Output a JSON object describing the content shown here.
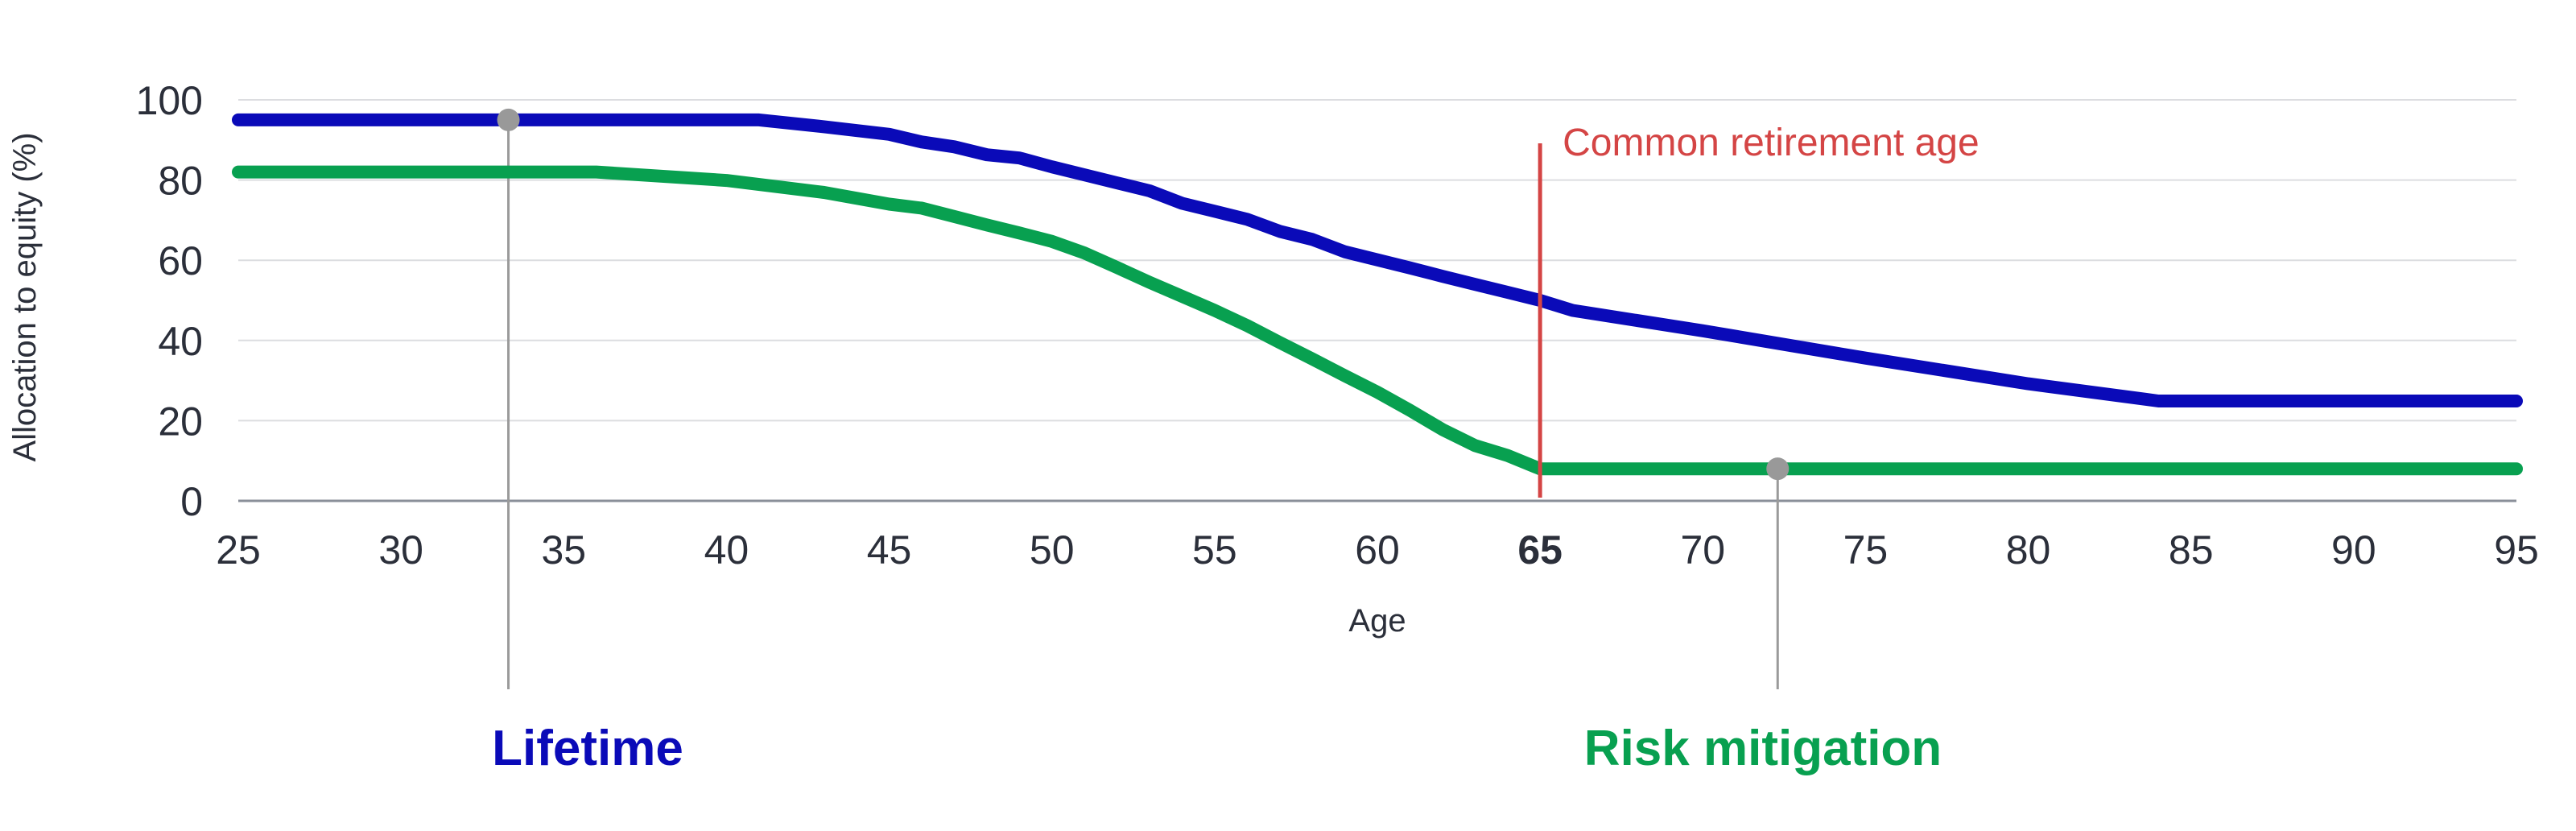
{
  "chart_data": {
    "type": "line",
    "title": "",
    "xlabel": "Age",
    "ylabel": "Allocation to equity (%)",
    "xlim": [
      25,
      95
    ],
    "ylim": [
      0,
      100
    ],
    "xticks": [
      25,
      30,
      35,
      40,
      45,
      50,
      55,
      60,
      65,
      70,
      75,
      80,
      85,
      90,
      95
    ],
    "xtick_labels": [
      "25",
      "30",
      "35",
      "40",
      "45",
      "50",
      "55",
      "60",
      "65",
      "70",
      "75",
      "80",
      "85",
      "90",
      "95"
    ],
    "yticks": [
      0,
      20,
      40,
      60,
      80,
      100
    ],
    "ytick_labels": [
      "0",
      "20",
      "40",
      "60",
      "80",
      "100"
    ],
    "emphasized_xtick": 65,
    "grid": "horizontal",
    "series": [
      {
        "name": "Lifetime",
        "color": "#0a0ab8",
        "points": [
          [
            25,
            95
          ],
          [
            30,
            95
          ],
          [
            35,
            95
          ],
          [
            40,
            95
          ],
          [
            41,
            95
          ],
          [
            43,
            93.3
          ],
          [
            45,
            91.4
          ],
          [
            46,
            89.5
          ],
          [
            47,
            88.3
          ],
          [
            48,
            86.3
          ],
          [
            49,
            85.5
          ],
          [
            50,
            83.3
          ],
          [
            51,
            81.3
          ],
          [
            52,
            79.3
          ],
          [
            53,
            77.3
          ],
          [
            54,
            74.2
          ],
          [
            55,
            72.2
          ],
          [
            56,
            70.2
          ],
          [
            57,
            67.2
          ],
          [
            58,
            65.2
          ],
          [
            59,
            62.1
          ],
          [
            60,
            60.1
          ],
          [
            61,
            58.1
          ],
          [
            62,
            56
          ],
          [
            63,
            54
          ],
          [
            64,
            52
          ],
          [
            65,
            50
          ],
          [
            66,
            47.5
          ],
          [
            70,
            42.4
          ],
          [
            75,
            35.6
          ],
          [
            80,
            29.2
          ],
          [
            84,
            24.9
          ],
          [
            85,
            24.9
          ],
          [
            90,
            24.9
          ],
          [
            95,
            24.9
          ]
        ]
      },
      {
        "name": "Risk mitigation",
        "color": "#08a050",
        "points": [
          [
            25,
            82
          ],
          [
            30,
            82
          ],
          [
            35,
            82
          ],
          [
            36,
            82
          ],
          [
            40,
            79.9
          ],
          [
            43,
            76.9
          ],
          [
            45,
            74
          ],
          [
            46,
            73
          ],
          [
            47,
            70.9
          ],
          [
            48,
            68.8
          ],
          [
            49,
            66.8
          ],
          [
            50,
            64.7
          ],
          [
            51,
            61.8
          ],
          [
            52,
            58.2
          ],
          [
            53,
            54.5
          ],
          [
            54,
            51
          ],
          [
            55,
            47.5
          ],
          [
            56,
            43.7
          ],
          [
            57,
            39.5
          ],
          [
            58,
            35.4
          ],
          [
            59,
            31.2
          ],
          [
            60,
            27.1
          ],
          [
            61,
            22.6
          ],
          [
            62,
            17.8
          ],
          [
            63,
            13.8
          ],
          [
            64,
            11.3
          ],
          [
            65,
            8
          ],
          [
            70,
            8
          ],
          [
            75,
            8
          ],
          [
            80,
            8
          ],
          [
            85,
            8
          ],
          [
            90,
            8
          ],
          [
            95,
            8
          ]
        ]
      }
    ],
    "annotations": [
      {
        "label": "Common retirement age",
        "x": 65,
        "color": "#d44545"
      }
    ],
    "markers": [
      {
        "series": "Lifetime",
        "x": 33.3,
        "y": 95
      },
      {
        "series": "Risk mitigation",
        "x": 72.3,
        "y": 8
      }
    ]
  }
}
